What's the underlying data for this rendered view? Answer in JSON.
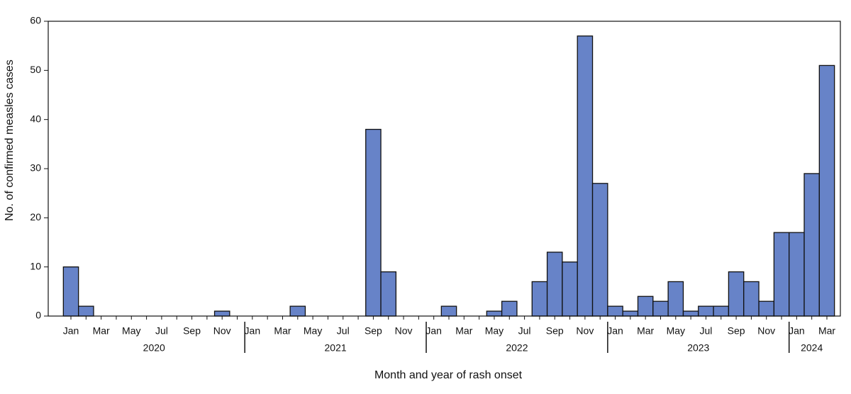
{
  "chart_data": {
    "type": "bar",
    "y_label": "No. of confirmed measles cases",
    "x_label": "Month and year of rash onset",
    "categories": [
      "Jan",
      null,
      "Mar",
      null,
      "May",
      null,
      "Jul",
      null,
      "Sep",
      null,
      "Nov",
      null,
      "Jan",
      null,
      "Mar",
      null,
      "May",
      null,
      "Jul",
      null,
      "Sep",
      null,
      "Nov",
      null,
      "Jan",
      null,
      "Mar",
      null,
      "May",
      null,
      "Jul",
      null,
      "Sep",
      null,
      "Nov",
      null,
      "Jan",
      null,
      "Mar",
      null,
      "May",
      null,
      "Jul",
      null,
      "Sep",
      null,
      "Nov",
      null,
      "Jan",
      null,
      "Mar"
    ],
    "years": [
      "2020",
      "2021",
      "2022",
      "2023",
      "2024"
    ],
    "values": [
      10,
      2,
      0,
      0,
      0,
      0,
      0,
      0,
      0,
      0,
      1,
      0,
      0,
      0,
      0,
      2,
      0,
      0,
      0,
      0,
      38,
      9,
      0,
      0,
      0,
      2,
      0,
      0,
      1,
      3,
      0,
      7,
      13,
      11,
      57,
      27,
      2,
      1,
      4,
      3,
      7,
      1,
      2,
      2,
      9,
      7,
      3,
      17,
      17,
      29,
      51
    ],
    "color": "#6783c8",
    "ylim": [
      0,
      60
    ],
    "yticks": [
      0,
      10,
      20,
      30,
      40,
      50,
      60
    ]
  }
}
